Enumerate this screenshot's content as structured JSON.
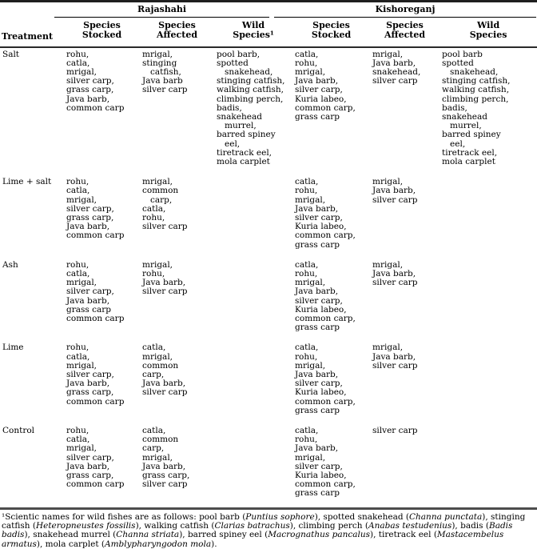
{
  "table": {
    "treatment_header": "Treatment",
    "group_headers": {
      "rajashahi": "Rajashahi",
      "kishoreganj": "Kishoreganj"
    },
    "sub_headers": [
      "Species\nStocked",
      "Species\nAffected",
      "Wild\nSpecies¹",
      "Species\nStocked",
      "Species\nAffected",
      "Wild\nSpecies"
    ],
    "rows": [
      {
        "cells": [
          "Salt",
          "rohu,\ncatla,\nmrigal,\nsilver carp,\ngrass carp,\nJava barb,\ncommon carp",
          "mrigal,\nstinging\n   catfish,\nJava barb\nsilver carp",
          "pool barb,\nspotted\n   snakehead,\nstinging catfish,\nwalking catfish,\nclimbing perch,\nbadis,\nsnakehead\n   murrel,\nbarred spiney\n   eel,\ntiretrack eel,\nmola carplet",
          "catla,\nrohu,\nmrigal,\nJava barb,\nsilver carp,\nKuria labeo,\ncommon carp,\ngrass carp",
          "mrigal,\nJava barb,\nsnakehead,\nsilver carp",
          "pool barb\nspotted\n   snakehead,\nstinging catfish,\nwalking catfish,\nclimbing perch,\nbadis,\nsnakehead\n   murrel,\nbarred spiney\n   eel,\ntiretrack eel,\nmola carplet"
        ]
      },
      {
        "cells": [
          "Lime + salt",
          "rohu,\ncatla,\nmrigal,\nsilver carp,\ngrass carp,\nJava barb,\ncommon carp",
          "mrigal,\ncommon\n   carp,\ncatla,\nrohu,\nsilver carp",
          "",
          "catla,\nrohu,\nmrigal,\nJava barb,\nsilver carp,\nKuria labeo,\ncommon carp,\ngrass carp",
          "mrigal,\nJava barb,\nsilver carp",
          ""
        ]
      },
      {
        "cells": [
          "Ash",
          "rohu,\ncatla,\nmrigal,\nsilver carp,\nJava barb,\ngrass carp\ncommon carp",
          "mrigal,\nrohu,\nJava barb,\nsilver carp",
          "",
          "catla,\nrohu,\nmrigal,\nJava barb,\nsilver carp,\nKuria labeo,\ncommon carp,\ngrass carp",
          "mrigal,\nJava barb,\nsilver carp",
          ""
        ]
      },
      {
        "cells": [
          "Lime",
          "rohu,\ncatla,\nmrigal,\nsilver carp,\nJava barb,\ngrass carp,\ncommon carp",
          "catla,\nmrigal,\ncommon\ncarp,\nJava barb,\nsilver carp",
          "",
          "catla,\nrohu,\nmrigal,\nJava barb,\nsilver carp,\nKuria labeo,\ncommon carp,\ngrass carp",
          "mrigal,\nJava barb,\nsilver carp",
          ""
        ]
      },
      {
        "cells": [
          "Control",
          "rohu,\ncatla,\nmrigal,\nsilver carp,\nJava barb,\ngrass carp,\ncommon carp",
          "catla,\ncommon\ncarp,\nmrigal,\nJava barb,\ngrass carp,\nsilver carp",
          "",
          "catla,\nrohu,\nJava barb,\nmrigal,\nsilver carp,\nKuria labeo,\ncommon carp,\ngrass carp",
          "silver carp",
          ""
        ]
      }
    ]
  },
  "footnote": {
    "segments": [
      {
        "t": "¹Scientic names for wild fishes are as follows: pool barb ("
      },
      {
        "t": "Puntius sophore",
        "i": true
      },
      {
        "t": "), spotted snakehead ("
      },
      {
        "t": "Channa punctata",
        "i": true
      },
      {
        "t": "), stinging catfish ("
      },
      {
        "t": "Heteropneustes fossilis",
        "i": true
      },
      {
        "t": "), walking catfish ("
      },
      {
        "t": "Clarias batrachus",
        "i": true
      },
      {
        "t": "), climbing perch ("
      },
      {
        "t": "Anabas testudenius",
        "i": true
      },
      {
        "t": "), badis ("
      },
      {
        "t": "Badis badis",
        "i": true
      },
      {
        "t": "), snakehead murrel ("
      },
      {
        "t": "Channa striata",
        "i": true
      },
      {
        "t": "), barred spiney eel ("
      },
      {
        "t": "Macrognathus pancalus",
        "i": true
      },
      {
        "t": "), tiretrack eel ("
      },
      {
        "t": "Mastacembelus armatus",
        "i": true
      },
      {
        "t": "), mola carplet ("
      },
      {
        "t": "Amblypharyngodon mola",
        "i": true
      },
      {
        "t": ")."
      }
    ]
  }
}
